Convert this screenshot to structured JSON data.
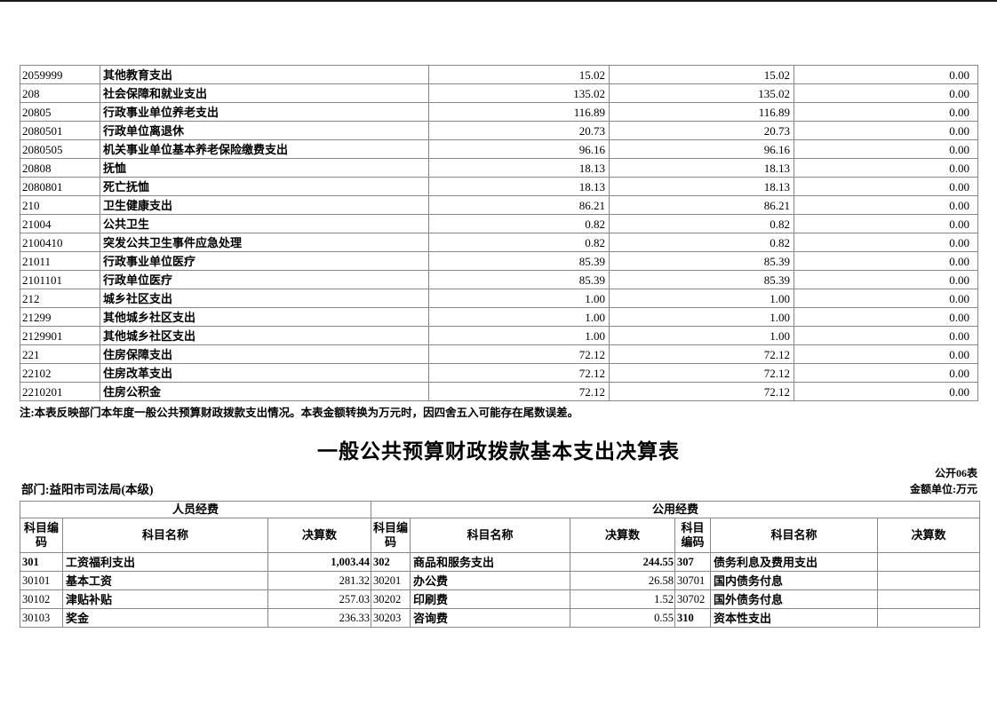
{
  "note": "注:本表反映部门本年度一般公共预算财政拨款支出情况。本表金额转换为万元时，因四舍五入可能存在尾数误差。",
  "title": "一般公共预算财政拨款基本支出决算表",
  "table_no": "公开06表",
  "department": "部门:益阳市司法局(本级)",
  "unit": "金额单位:万元",
  "table1": {
    "rows": [
      {
        "code": "2059999",
        "name": "其他教育支出",
        "values": [
          "15.02",
          "15.02",
          "0.00"
        ]
      },
      {
        "code": "208",
        "name": "社会保障和就业支出",
        "values": [
          "135.02",
          "135.02",
          "0.00"
        ]
      },
      {
        "code": "20805",
        "name": "行政事业单位养老支出",
        "values": [
          "116.89",
          "116.89",
          "0.00"
        ]
      },
      {
        "code": "2080501",
        "name": "行政单位离退休",
        "values": [
          "20.73",
          "20.73",
          "0.00"
        ]
      },
      {
        "code": "2080505",
        "name": "机关事业单位基本养老保险缴费支出",
        "values": [
          "96.16",
          "96.16",
          "0.00"
        ]
      },
      {
        "code": "20808",
        "name": "抚恤",
        "values": [
          "18.13",
          "18.13",
          "0.00"
        ]
      },
      {
        "code": "2080801",
        "name": "死亡抚恤",
        "values": [
          "18.13",
          "18.13",
          "0.00"
        ]
      },
      {
        "code": "210",
        "name": "卫生健康支出",
        "values": [
          "86.21",
          "86.21",
          "0.00"
        ]
      },
      {
        "code": "21004",
        "name": "公共卫生",
        "values": [
          "0.82",
          "0.82",
          "0.00"
        ]
      },
      {
        "code": "2100410",
        "name": "突发公共卫生事件应急处理",
        "values": [
          "0.82",
          "0.82",
          "0.00"
        ]
      },
      {
        "code": "21011",
        "name": "行政事业单位医疗",
        "values": [
          "85.39",
          "85.39",
          "0.00"
        ]
      },
      {
        "code": "2101101",
        "name": "行政单位医疗",
        "values": [
          "85.39",
          "85.39",
          "0.00"
        ]
      },
      {
        "code": "212",
        "name": "城乡社区支出",
        "values": [
          "1.00",
          "1.00",
          "0.00"
        ]
      },
      {
        "code": "21299",
        "name": "其他城乡社区支出",
        "values": [
          "1.00",
          "1.00",
          "0.00"
        ]
      },
      {
        "code": "2129901",
        "name": "其他城乡社区支出",
        "values": [
          "1.00",
          "1.00",
          "0.00"
        ]
      },
      {
        "code": "221",
        "name": "住房保障支出",
        "values": [
          "72.12",
          "72.12",
          "0.00"
        ]
      },
      {
        "code": "22102",
        "name": "住房改革支出",
        "values": [
          "72.12",
          "72.12",
          "0.00"
        ]
      },
      {
        "code": "2210201",
        "name": "住房公积金",
        "values": [
          "72.12",
          "72.12",
          "0.00"
        ]
      }
    ]
  },
  "table2": {
    "groups": [
      "人员经费",
      "公用经费"
    ],
    "col_headers": [
      "科目编码",
      "科目名称",
      "决算数"
    ],
    "rows": [
      {
        "groups": [
          {
            "code": "301",
            "name": "工资福利支出",
            "value": "1,003.44",
            "bold": true
          },
          {
            "code": "302",
            "name": "商品和服务支出",
            "value": "244.55",
            "bold": true
          },
          {
            "code": "307",
            "name": "债务利息及费用支出",
            "value": "",
            "bold": true
          }
        ]
      },
      {
        "groups": [
          {
            "code": "30101",
            "name": "基本工资",
            "value": "281.32",
            "bold": false
          },
          {
            "code": "30201",
            "name": "办公费",
            "value": "26.58",
            "bold": false
          },
          {
            "code": "30701",
            "name": "国内债务付息",
            "value": "",
            "bold": false
          }
        ]
      },
      {
        "groups": [
          {
            "code": "30102",
            "name": "津贴补贴",
            "value": "257.03",
            "bold": false
          },
          {
            "code": "30202",
            "name": "印刷费",
            "value": "1.52",
            "bold": false
          },
          {
            "code": "30702",
            "name": "国外债务付息",
            "value": "",
            "bold": false
          }
        ]
      },
      {
        "groups": [
          {
            "code": "30103",
            "name": "奖金",
            "value": "236.33",
            "bold": false
          },
          {
            "code": "30203",
            "name": "咨询费",
            "value": "0.55",
            "bold": false
          },
          {
            "code": "310",
            "name": "资本性支出",
            "value": "",
            "bold": true
          }
        ]
      }
    ]
  }
}
